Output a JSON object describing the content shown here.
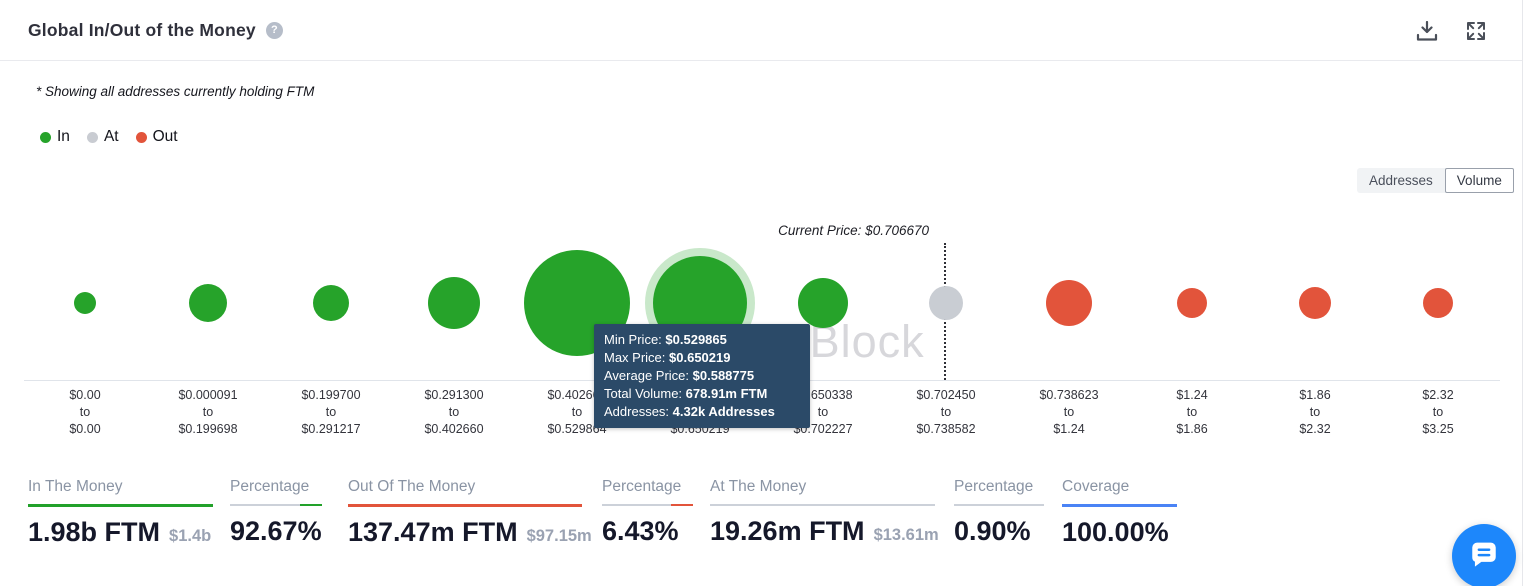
{
  "header": {
    "title": "Global In/Out of the Money",
    "help_icon": "?"
  },
  "subtitle": "* Showing all addresses currently holding FTM",
  "legend": [
    {
      "label": "In"
    },
    {
      "label": "At"
    },
    {
      "label": "Out"
    }
  ],
  "toggle": {
    "options": [
      "Addresses",
      "Volume"
    ],
    "selected": "Volume"
  },
  "watermark": "IntoTheBlock",
  "chart_data": {
    "type": "bubble",
    "title": "Global In/Out of the Money",
    "asset": "FTM",
    "current_price_label": "Current Price: $0.706670",
    "current_price": 0.70667,
    "to_label": "to",
    "legend_entries": [
      "In",
      "At",
      "Out"
    ],
    "buckets": [
      {
        "min": "$0.00",
        "max": "$0.00",
        "status": "in",
        "size": 22
      },
      {
        "min": "$0.000091",
        "max": "$0.199698",
        "status": "in",
        "size": 38
      },
      {
        "min": "$0.199700",
        "max": "$0.291217",
        "status": "in",
        "size": 36
      },
      {
        "min": "$0.291300",
        "max": "$0.402660",
        "status": "in",
        "size": 52
      },
      {
        "min": "$0.402661",
        "max": "$0.529864",
        "status": "in",
        "size": 106
      },
      {
        "min": "$0.529865",
        "max": "$0.650219",
        "status": "in",
        "size": 94,
        "highlighted": true
      },
      {
        "min": "$0.650338",
        "max": "$0.702227",
        "status": "in",
        "size": 50
      },
      {
        "min": "$0.702450",
        "max": "$0.738582",
        "status": "at",
        "size": 34
      },
      {
        "min": "$0.738623",
        "max": "$1.24",
        "status": "out",
        "size": 46
      },
      {
        "min": "$1.24",
        "max": "$1.86",
        "status": "out",
        "size": 30
      },
      {
        "min": "$1.86",
        "max": "$2.32",
        "status": "out",
        "size": 32
      },
      {
        "min": "$2.32",
        "max": "$3.25",
        "status": "out",
        "size": 30
      }
    ]
  },
  "tooltip": {
    "lines": [
      {
        "label": "Min Price: ",
        "value": "$0.529865"
      },
      {
        "label": "Max Price: ",
        "value": "$0.650219"
      },
      {
        "label": "Average Price: ",
        "value": "$0.588775"
      },
      {
        "label": "Total Volume: ",
        "value": "678.91m FTM"
      },
      {
        "label": "Addresses: ",
        "value": "4.32k Addresses"
      }
    ]
  },
  "stats": [
    {
      "label": "In The Money",
      "value": "1.98b FTM",
      "sub": "$1.4b"
    },
    {
      "label": "Percentage",
      "value": "92.67%"
    },
    {
      "label": "Out Of The Money",
      "value": "137.47m FTM",
      "sub": "$97.15m"
    },
    {
      "label": "Percentage",
      "value": "6.43%"
    },
    {
      "label": "At The Money",
      "value": "19.26m FTM",
      "sub": "$13.61m"
    },
    {
      "label": "Percentage",
      "value": "0.90%"
    },
    {
      "label": "Coverage",
      "value": "100.00%"
    }
  ],
  "colors": {
    "in": "#26a32a",
    "at": "#c9cdd3",
    "out": "#e2543b",
    "tooltip_bg": "#2b4a68",
    "coverage_accent": "#4a83f5",
    "chat_fab": "#1d87fb"
  }
}
